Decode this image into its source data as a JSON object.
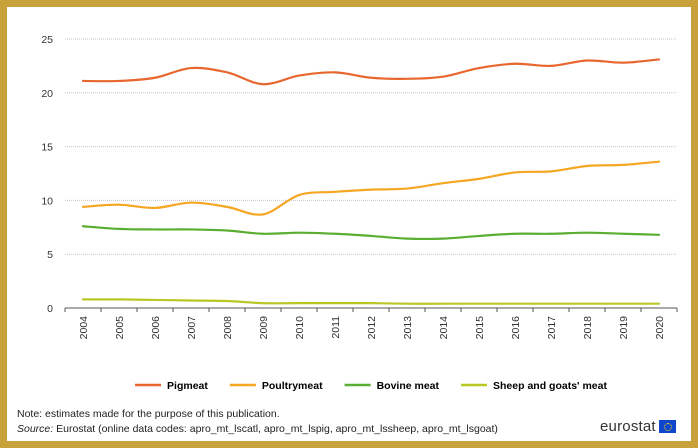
{
  "chart_data": {
    "type": "line",
    "x": [
      "2004",
      "2005",
      "2006",
      "2007",
      "2008",
      "2009",
      "2010",
      "2011",
      "2012",
      "2013",
      "2014",
      "2015",
      "2016",
      "2017",
      "2018",
      "2019",
      "2020"
    ],
    "series": [
      {
        "name": "Pigmeat",
        "color": "#e8672f",
        "values": [
          21.1,
          21.1,
          21.4,
          22.3,
          21.9,
          20.8,
          21.6,
          21.9,
          21.4,
          21.3,
          21.5,
          22.3,
          22.7,
          22.5,
          23.0,
          22.8,
          23.1
        ]
      },
      {
        "name": "Poultrymeat",
        "color": "#f5a623",
        "values": [
          9.4,
          9.6,
          9.3,
          9.8,
          9.4,
          8.7,
          10.5,
          10.8,
          11.0,
          11.1,
          11.6,
          12.0,
          12.6,
          12.7,
          13.2,
          13.3,
          13.6
        ]
      },
      {
        "name": "Bovine meat",
        "color": "#5aae32",
        "values": [
          7.6,
          7.35,
          7.3,
          7.3,
          7.2,
          6.9,
          7.0,
          6.9,
          6.7,
          6.45,
          6.45,
          6.7,
          6.9,
          6.9,
          7.0,
          6.9,
          6.8
        ]
      },
      {
        "name": "Sheep and goats' meat",
        "color": "#b8c724",
        "values": [
          0.8,
          0.8,
          0.75,
          0.7,
          0.65,
          0.45,
          0.45,
          0.45,
          0.45,
          0.4,
          0.4,
          0.4,
          0.4,
          0.4,
          0.4,
          0.4,
          0.4
        ]
      }
    ],
    "ylim": [
      0,
      25
    ],
    "yticks": [
      "0",
      "5",
      "10",
      "15",
      "20",
      "25"
    ],
    "grid": true,
    "legend_position": "bottom",
    "title": "",
    "xlabel": "",
    "ylabel": ""
  },
  "footer": {
    "note": "Note: estimates made for the purpose of this publication.",
    "source_label": "Source:",
    "source_text": " Eurostat (online data codes: apro_mt_lscatl, apro_mt_lspig, apro_mt_lssheep, apro_mt_lsgoat)",
    "logo_text": "eurostat"
  },
  "colors": {
    "frame_border": "#c9a13a",
    "grid": "#c8c8c8",
    "axis": "#555555"
  }
}
